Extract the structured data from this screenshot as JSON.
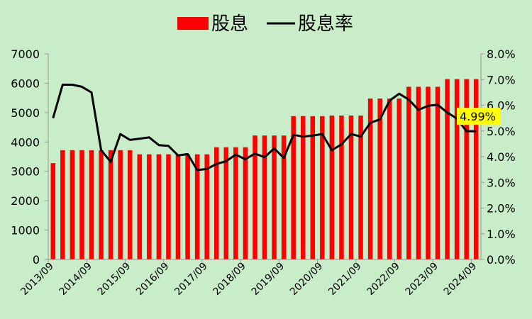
{
  "chart_data": {
    "type": "bar+line",
    "legend": {
      "placement": "top-center",
      "entries": [
        "股息",
        "股息率"
      ]
    },
    "grid": false,
    "x_tick_labels": [
      "2013/09",
      "2014/09",
      "2015/09",
      "2016/09",
      "2017/09",
      "2018/09",
      "2019/09",
      "2020/09",
      "2021/09",
      "2022/09",
      "2023/09",
      "2024/09"
    ],
    "y_left": {
      "range": [
        0,
        7000
      ],
      "ticks": [
        "0",
        "1000",
        "2000",
        "3000",
        "4000",
        "5000",
        "6000",
        "7000"
      ]
    },
    "y_right": {
      "range": [
        0,
        0.08
      ],
      "ticks": [
        "0.0%",
        "1.0%",
        "2.0%",
        "3.0%",
        "4.0%",
        "5.0%",
        "6.0%",
        "7.0%",
        "8.0%"
      ]
    },
    "annotation": {
      "text": "4.99%",
      "color": "#ffff00"
    },
    "series": [
      {
        "name": "股息",
        "type": "bar",
        "axis": "left",
        "color": "#ff0000",
        "values": [
          3280,
          3720,
          3720,
          3720,
          3720,
          3720,
          3720,
          3720,
          3720,
          3580,
          3580,
          3580,
          3580,
          3580,
          3580,
          3580,
          3580,
          3820,
          3820,
          3820,
          3820,
          4220,
          4220,
          4220,
          4220,
          4880,
          4880,
          4880,
          4880,
          4900,
          4900,
          4900,
          4900,
          5480,
          5480,
          5480,
          5480,
          5880,
          5880,
          5880,
          5880,
          6140,
          6140,
          6140,
          6140
        ]
      },
      {
        "name": "股息率",
        "type": "line",
        "axis": "right",
        "color": "#000000",
        "values": [
          0.055,
          0.068,
          0.068,
          0.0672,
          0.065,
          0.0425,
          0.038,
          0.0488,
          0.0465,
          0.047,
          0.0475,
          0.0445,
          0.0442,
          0.0405,
          0.041,
          0.0348,
          0.0352,
          0.0372,
          0.0382,
          0.0408,
          0.039,
          0.0412,
          0.0398,
          0.0432,
          0.0395,
          0.0485,
          0.0478,
          0.0482,
          0.0488,
          0.0425,
          0.0448,
          0.0488,
          0.0478,
          0.0532,
          0.0545,
          0.0618,
          0.0645,
          0.0622,
          0.0582,
          0.0598,
          0.0602,
          0.0572,
          0.0548,
          0.0499,
          0.0499
        ]
      }
    ]
  }
}
